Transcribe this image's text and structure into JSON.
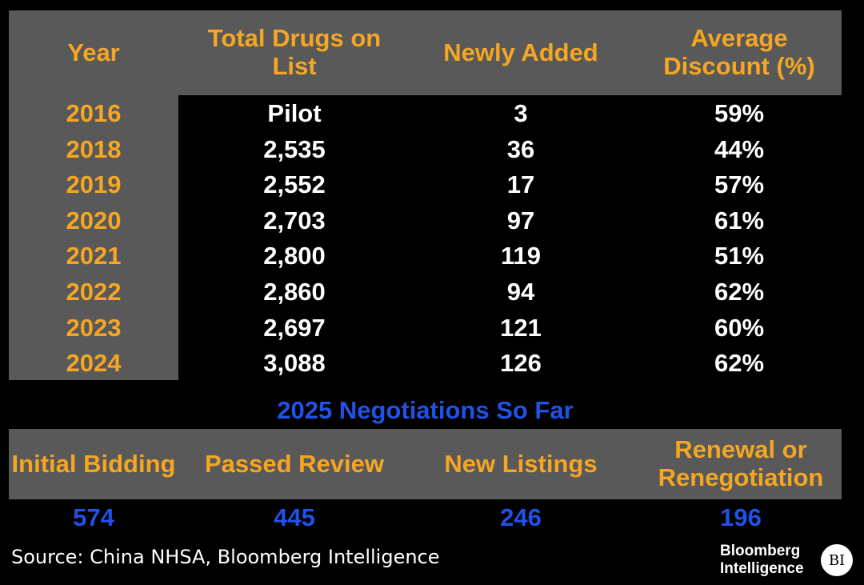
{
  "chart_data": {
    "type": "table",
    "columns": [
      "Year",
      "Total Drugs on List",
      "Newly Added",
      "Average Discount (%)"
    ],
    "rows": [
      {
        "year": "2016",
        "total": "Pilot",
        "added": "3",
        "discount": "59%"
      },
      {
        "year": "2018",
        "total": "2,535",
        "added": "36",
        "discount": "44%"
      },
      {
        "year": "2019",
        "total": "2,552",
        "added": "17",
        "discount": "57%"
      },
      {
        "year": "2020",
        "total": "2,703",
        "added": "97",
        "discount": "61%"
      },
      {
        "year": "2021",
        "total": "2,800",
        "added": "119",
        "discount": "51%"
      },
      {
        "year": "2022",
        "total": "2,860",
        "added": "94",
        "discount": "62%"
      },
      {
        "year": "2023",
        "total": "2,697",
        "added": "121",
        "discount": "60%"
      },
      {
        "year": "2024",
        "total": "3,088",
        "added": "126",
        "discount": "62%"
      }
    ],
    "subtitle": "2025 Negotiations So Far",
    "negotiations": [
      {
        "label": "Initial Bidding",
        "value": "574"
      },
      {
        "label": "Passed Review",
        "value": "445"
      },
      {
        "label": "New Listings",
        "value": "246"
      },
      {
        "label": "Renewal or Renegotiation",
        "value": "196"
      }
    ]
  },
  "source": "Source: China NHSA, Bloomberg Intelligence",
  "logo": {
    "line1": "Bloomberg",
    "line2": "Intelligence",
    "badge": "BI"
  },
  "colors": {
    "header_panel": "#595959",
    "header_text": "#f5a623",
    "value_text": "#ffffff",
    "accent_blue": "#1f52e8",
    "background": "#000000"
  }
}
